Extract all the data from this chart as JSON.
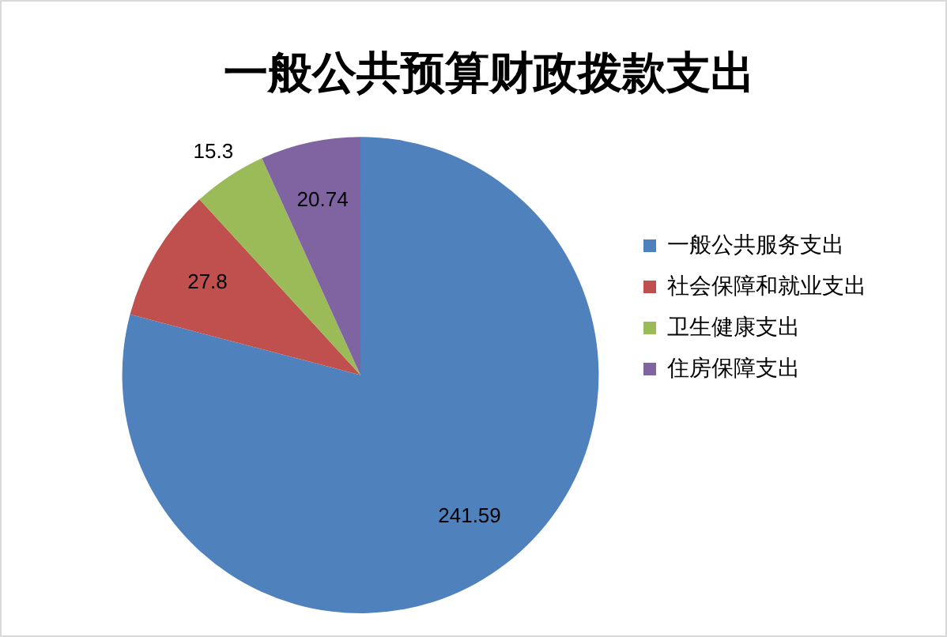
{
  "chart_data": {
    "type": "pie",
    "title": "一般公共预算财政拨款支出",
    "categories": [
      "一般公共服务支出",
      "社会保障和就业支出",
      "卫生健康支出",
      "住房保障支出"
    ],
    "values": [
      241.59,
      27.8,
      15.3,
      20.74
    ],
    "colors": [
      "#4f81bd",
      "#c0504d",
      "#9bbb59",
      "#8064a2"
    ],
    "data_labels": true,
    "legend": "right"
  }
}
